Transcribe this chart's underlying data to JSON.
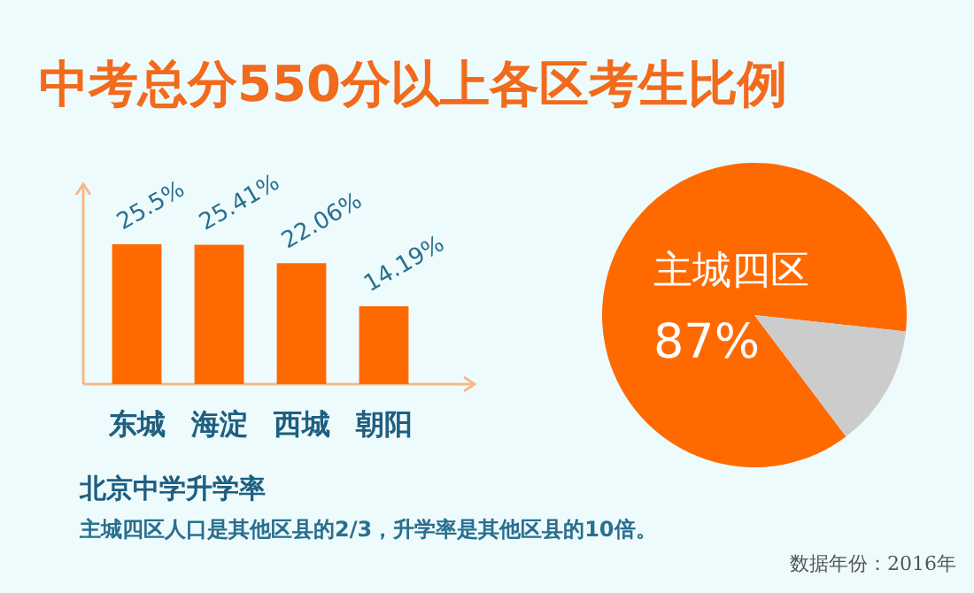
{
  "chart_data": [
    {
      "type": "bar",
      "title": "中考总分550分以上各区考生比例",
      "categories": [
        "东城",
        "海淀",
        "西城",
        "朝阳"
      ],
      "values": [
        25.5,
        25.41,
        22.06,
        14.19
      ],
      "value_labels": [
        "25.5%",
        "25.41%",
        "22.06%",
        "14.19%"
      ],
      "color": "#ff6a00",
      "annotations": [
        "北京中学升学率",
        "主城四区人口是其他区县的2/3，升学率是其他区县的10倍。",
        "数据年份：2016年"
      ]
    },
    {
      "type": "pie",
      "categories": [
        "主城四区",
        null
      ],
      "values": [
        87,
        13
      ],
      "value_labels": [
        "87%",
        null
      ],
      "colors": [
        "#ff6a00",
        "#cccccc"
      ]
    }
  ]
}
